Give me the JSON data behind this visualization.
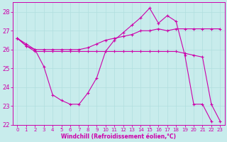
{
  "xlabel": "Windchill (Refroidissement éolien,°C)",
  "xlim_min": -0.5,
  "xlim_max": 23.5,
  "ylim_min": 22.0,
  "ylim_max": 28.5,
  "yticks": [
    22,
    23,
    24,
    25,
    26,
    27,
    28
  ],
  "xticks": [
    0,
    1,
    2,
    3,
    4,
    5,
    6,
    7,
    8,
    9,
    10,
    11,
    12,
    13,
    14,
    15,
    16,
    17,
    18,
    19,
    20,
    21,
    22,
    23
  ],
  "background_color": "#c8ecec",
  "grid_color": "#b0dede",
  "line_color": "#cc00aa",
  "series": [
    {
      "x": [
        0,
        1,
        2,
        3,
        4,
        5,
        6,
        7,
        8,
        9,
        10,
        11,
        12,
        13,
        14,
        15,
        16,
        17,
        18,
        19,
        20,
        21,
        22
      ],
      "y": [
        26.6,
        26.2,
        26.0,
        25.1,
        23.6,
        23.3,
        23.1,
        23.1,
        23.7,
        24.5,
        25.9,
        26.5,
        26.9,
        27.3,
        27.7,
        28.2,
        27.4,
        27.8,
        27.5,
        25.7,
        23.1,
        23.1,
        22.2
      ]
    },
    {
      "x": [
        0,
        1,
        2,
        3,
        4,
        5,
        6,
        7,
        8,
        9,
        10,
        11,
        12,
        13,
        14,
        15,
        16,
        17,
        18,
        19,
        20,
        21,
        22,
        23
      ],
      "y": [
        26.6,
        26.2,
        25.9,
        25.9,
        25.9,
        25.9,
        25.9,
        25.9,
        25.9,
        25.9,
        25.9,
        25.9,
        25.9,
        25.9,
        25.9,
        25.9,
        25.9,
        25.9,
        25.9,
        25.8,
        25.7,
        25.6,
        23.1,
        22.2
      ]
    },
    {
      "x": [
        0,
        1,
        2,
        3,
        4,
        5,
        6,
        7,
        8,
        9,
        10,
        11,
        12,
        13,
        14,
        15,
        16,
        17,
        18,
        19,
        20,
        21,
        22,
        23
      ],
      "y": [
        26.6,
        26.3,
        26.0,
        26.0,
        26.0,
        26.0,
        26.0,
        26.0,
        26.1,
        26.3,
        26.5,
        26.6,
        26.7,
        26.8,
        27.0,
        27.0,
        27.1,
        27.0,
        27.1,
        27.1,
        27.1,
        27.1,
        27.1,
        27.1
      ]
    }
  ]
}
